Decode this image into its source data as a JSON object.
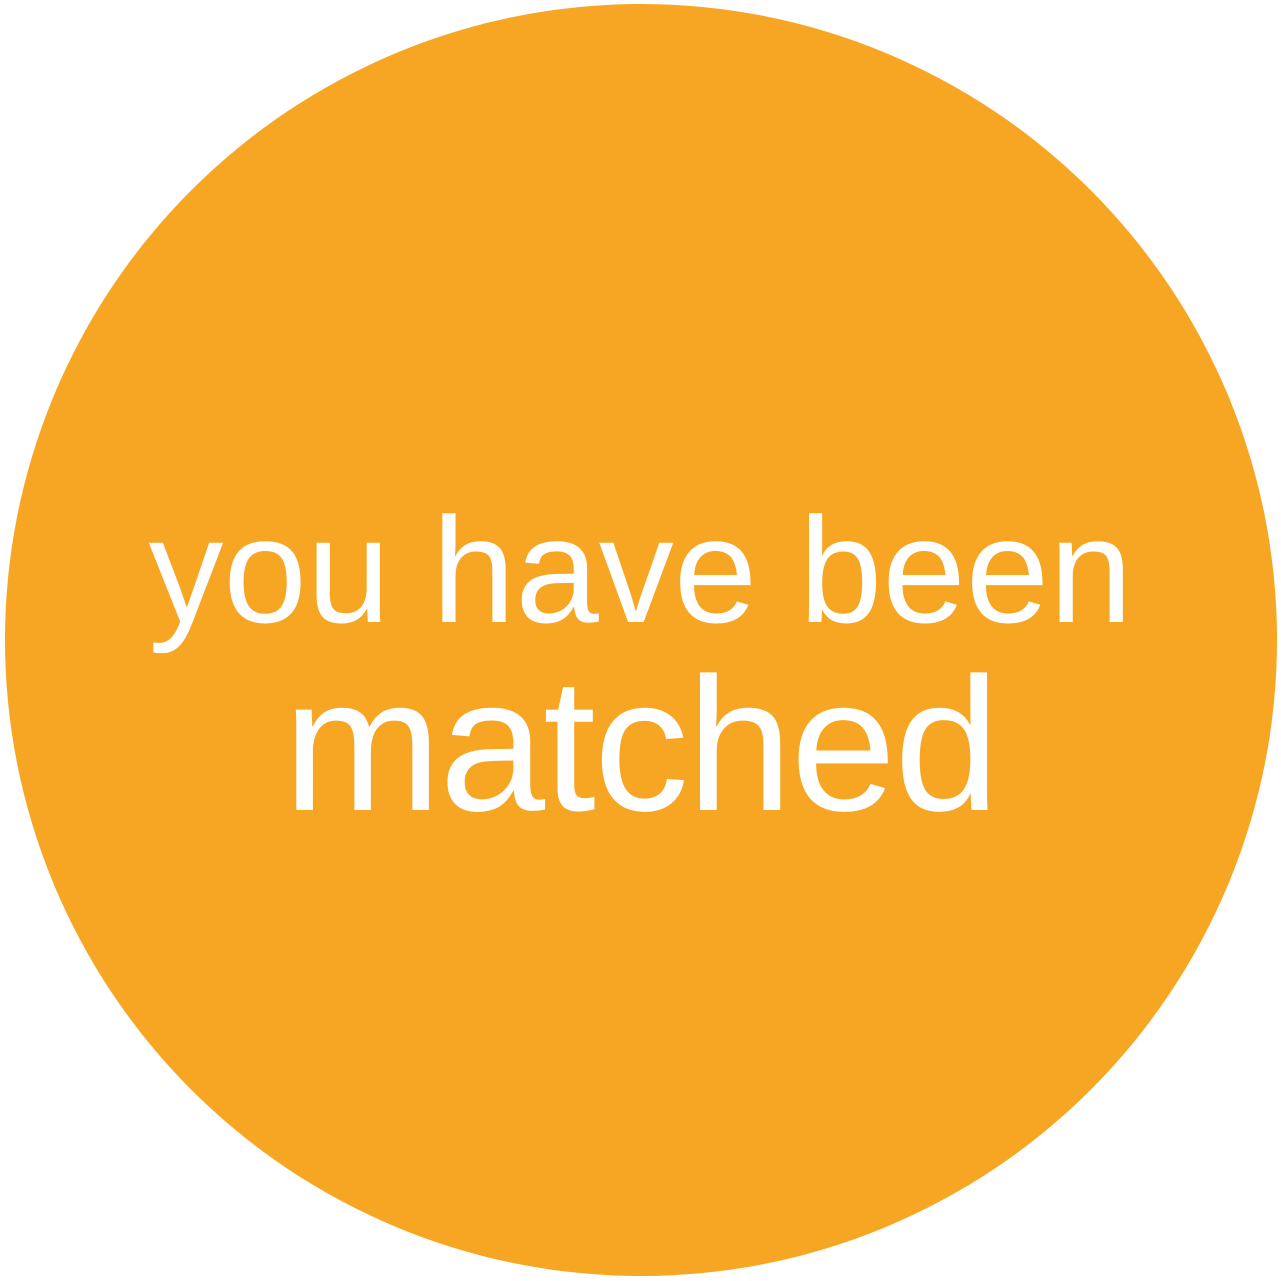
{
  "badge": {
    "color": "#F7A623",
    "text_color": "#FFFFFF",
    "line1": "you have been",
    "line2": "matched"
  }
}
